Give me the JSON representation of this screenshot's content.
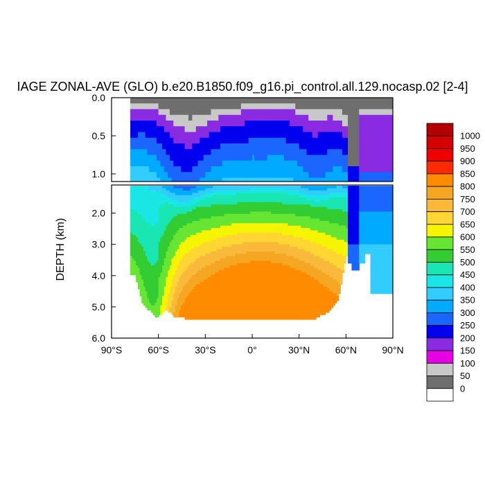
{
  "chart_data": {
    "type": "heatmap",
    "title": "IAGE ZONAL-AVE (GLO) b.e20.B1850.f09_g16.pi_control.all.129.nocasp.02 [2-4]",
    "ylabel": "DEPTH (km)",
    "xlabel": "",
    "x_ticks": [
      "90°S",
      "60°S",
      "30°S",
      "0°",
      "30°N",
      "60°N",
      "90°N"
    ],
    "x_range": [
      -90,
      90
    ],
    "y_range_km": [
      0,
      6
    ],
    "y_ticks_upper": [
      "0.0",
      "0.5",
      "1.0"
    ],
    "y_ticks_lower": [
      "2.0",
      "3.0",
      "4.0",
      "5.0",
      "6.0"
    ],
    "upper_panel_depth_km": [
      0,
      1.1
    ],
    "lower_panel_depth_km": [
      1.1,
      6.0
    ],
    "colorbar": {
      "labels": [
        "1000",
        "950",
        "900",
        "850",
        "800",
        "750",
        "700",
        "650",
        "600",
        "550",
        "500",
        "450",
        "400",
        "350",
        "300",
        "250",
        "200",
        "150",
        "100",
        "50",
        "0"
      ],
      "colors": [
        "#b30000",
        "#d40000",
        "#ee0000",
        "#ff2a00",
        "#ff8c00",
        "#f5a623",
        "#f9b93a",
        "#ffd633",
        "#f5f500",
        "#66e633",
        "#33cc33",
        "#1ae6b3",
        "#1ae6e6",
        "#33ccff",
        "#00aaff",
        "#1a66ff",
        "#0000ee",
        "#8a2be2",
        "#e600e6",
        "#c8c8c8",
        "#6e6e6e"
      ],
      "bottom_color": "#ffffff"
    },
    "zonal_profile": {
      "lat": [
        -78,
        -70,
        -60,
        -50,
        -40,
        -30,
        -20,
        -10,
        0,
        10,
        20,
        30,
        40,
        50,
        57,
        60
      ],
      "surface_gray_depth_km": [
        0.15,
        0.12,
        0.18,
        0.35,
        0.45,
        0.35,
        0.25,
        0.2,
        0.15,
        0.15,
        0.15,
        0.2,
        0.3,
        0.25,
        0.3,
        0.4
      ]
    },
    "bottom_depth_km": {
      "lat": [
        -75,
        -70,
        -62,
        -60,
        -55,
        -50,
        -40,
        -30,
        0,
        30,
        40,
        50,
        55,
        60
      ],
      "depth": [
        4.0,
        4.9,
        5.3,
        5.3,
        5.1,
        5.3,
        5.4,
        5.4,
        5.4,
        5.4,
        5.4,
        5.1,
        4.8,
        3.4
      ]
    }
  }
}
